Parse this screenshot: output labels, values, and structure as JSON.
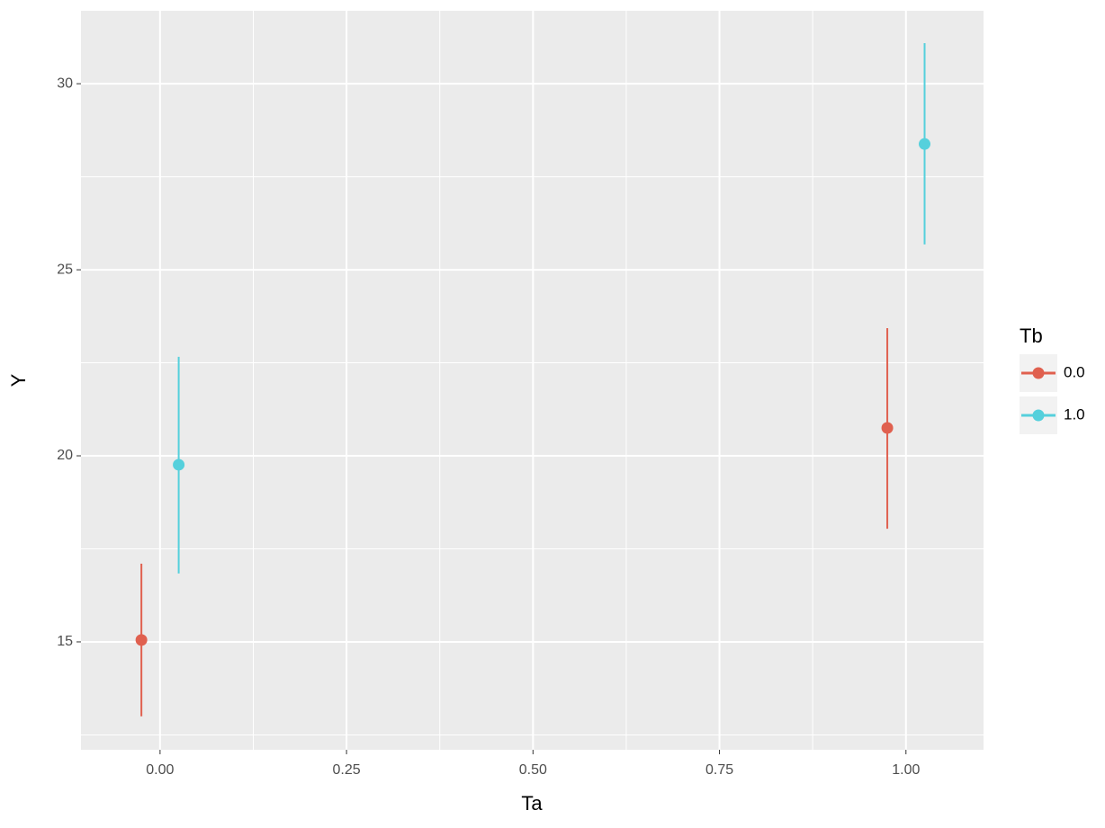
{
  "chart_data": {
    "type": "pointrange",
    "x_label": "Ta",
    "y_label": "Y",
    "legend_title": "Tb",
    "legend_position": "right",
    "xlim": [
      -0.106,
      1.104
    ],
    "ylim": [
      12.1,
      31.96
    ],
    "xticks": [
      {
        "value": 0,
        "label": "0.00"
      },
      {
        "value": 0.25,
        "label": "0.25"
      },
      {
        "value": 0.5,
        "label": "0.50"
      },
      {
        "value": 0.75,
        "label": "0.75"
      },
      {
        "value": 1,
        "label": "1.00"
      }
    ],
    "yticks": [
      15,
      20,
      25,
      30
    ],
    "minor_xticks": [
      0.125,
      0.375,
      0.625,
      0.875
    ],
    "minor_yticks": [
      12.5,
      17.5,
      22.5,
      27.5
    ],
    "grid": true,
    "series": [
      {
        "name": "0.0",
        "color": "#e0604f",
        "x": [
          -0.025,
          0.975
        ],
        "values": [
          15.05,
          20.75
        ],
        "ymin": [
          13.0,
          18.04
        ],
        "ymax": [
          17.1,
          23.43
        ]
      },
      {
        "name": "1.0",
        "color": "#55d0dc",
        "x": [
          0.025,
          1.025
        ],
        "values": [
          19.76,
          28.38
        ],
        "ymin": [
          16.84,
          25.68
        ],
        "ymax": [
          22.66,
          31.09
        ]
      }
    ]
  }
}
